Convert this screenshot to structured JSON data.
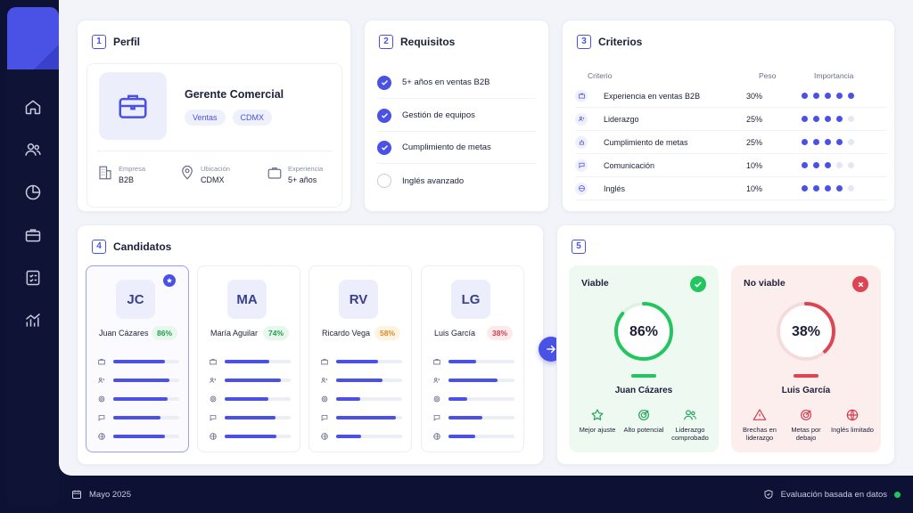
{
  "colors": {
    "accent": "#4a52e6",
    "green": "#22c55e",
    "red": "#dc4654",
    "navy": "#0f1437"
  },
  "nav": {
    "items": [
      "home-icon",
      "users-icon",
      "pie-chart-icon",
      "briefcase-icon",
      "checklist-icon",
      "bar-chart-icon"
    ]
  },
  "profile": {
    "num": "1",
    "title": "Perfil",
    "role": "Gerente Comercial",
    "tags": [
      "Ventas",
      "CDMX"
    ],
    "meta": [
      {
        "label": "Empresa",
        "value": "B2B",
        "icon": "building-icon"
      },
      {
        "label": "Ubicación",
        "value": "CDMX",
        "icon": "location-pin-icon"
      },
      {
        "label": "Experiencia",
        "value": "5+ años",
        "icon": "briefcase-icon"
      }
    ]
  },
  "requirements": {
    "num": "2",
    "title": "Requisitos",
    "items": [
      {
        "label": "5+ años en ventas B2B",
        "checked": true
      },
      {
        "label": "Gestión de equipos",
        "checked": true
      },
      {
        "label": "Cumplimiento de metas",
        "checked": true
      },
      {
        "label": "Inglés avanzado",
        "checked": false
      }
    ]
  },
  "criteria": {
    "num": "3",
    "title": "Criterios",
    "headers": {
      "criterion": "Criterio",
      "weight": "Peso",
      "importance": "Importancia"
    },
    "rows": [
      {
        "name": "Experiencia en ventas B2B",
        "weight": "30%",
        "importance": 5
      },
      {
        "name": "Liderazgo",
        "weight": "25%",
        "importance": 4
      },
      {
        "name": "Cumplimiento de metas",
        "weight": "25%",
        "importance": 4
      },
      {
        "name": "Comunicación",
        "weight": "10%",
        "importance": 3
      },
      {
        "name": "Inglés",
        "weight": "10%",
        "importance": 4
      }
    ]
  },
  "candidates": {
    "num": "4",
    "title": "Candidatos",
    "list": [
      {
        "initials": "JC",
        "name": "Juan Cázares",
        "score": "86%",
        "tone": "green",
        "bars": [
          0.78,
          0.85,
          0.82,
          0.72,
          0.78
        ],
        "selected": true
      },
      {
        "initials": "MA",
        "name": "María Aguilar",
        "score": "74%",
        "tone": "green",
        "bars": [
          0.68,
          0.85,
          0.66,
          0.77,
          0.78
        ],
        "selected": false
      },
      {
        "initials": "RV",
        "name": "Ricardo Vega",
        "score": "58%",
        "tone": "orange",
        "bars": [
          0.64,
          0.7,
          0.36,
          0.9,
          0.38
        ],
        "selected": false
      },
      {
        "initials": "LG",
        "name": "Luis García",
        "score": "38%",
        "tone": "red",
        "bars": [
          0.42,
          0.74,
          0.28,
          0.52,
          0.4
        ],
        "selected": false
      }
    ]
  },
  "results": {
    "num": "5",
    "viable": {
      "title": "Viable",
      "percent": "86%",
      "value": 0.86,
      "candidate": "Juan Cázares",
      "features": [
        {
          "label": "Mejor ajuste",
          "icon": "star-icon"
        },
        {
          "label": "Alto potencial",
          "icon": "target-icon"
        },
        {
          "label": "Liderazgo comprobado",
          "icon": "users-icon"
        }
      ]
    },
    "not_viable": {
      "title": "No viable",
      "percent": "38%",
      "value": 0.38,
      "candidate": "Luis García",
      "features": [
        {
          "label": "Brechas en liderazgo",
          "icon": "warning-icon"
        },
        {
          "label": "Metas por debajo",
          "icon": "target-icon"
        },
        {
          "label": "Inglés limitado",
          "icon": "globe-icon"
        }
      ]
    }
  },
  "footer": {
    "date": "Mayo 2025",
    "status": "Evaluación basada en datos"
  }
}
